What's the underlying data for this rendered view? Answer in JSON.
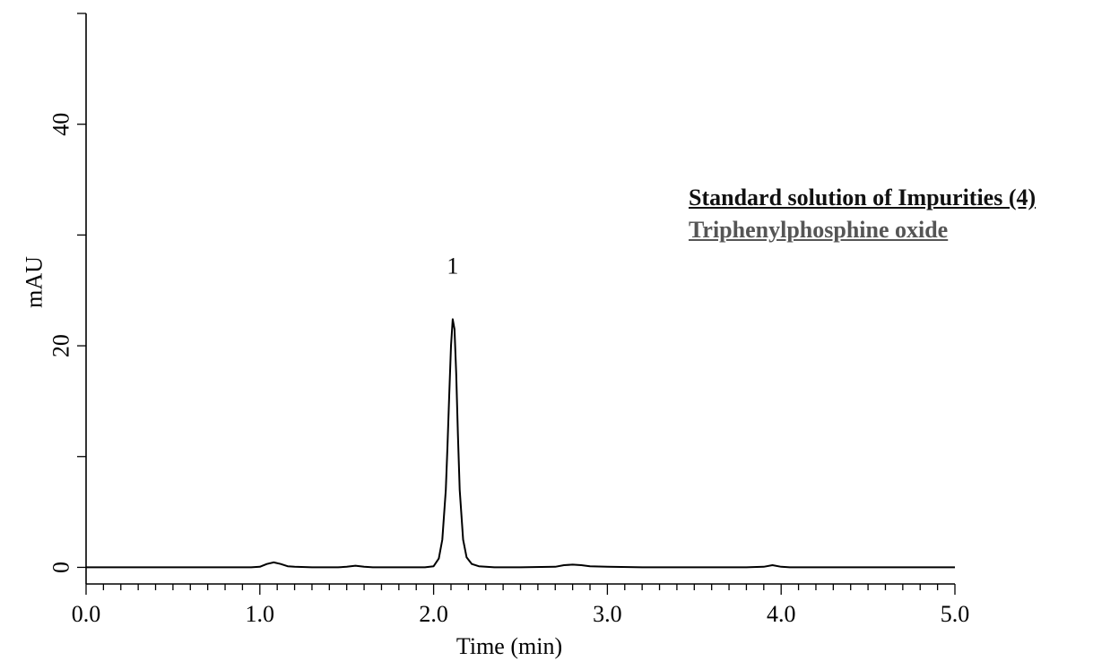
{
  "chart_data": {
    "type": "line",
    "xlabel": "Time (min)",
    "ylabel": "mAU",
    "xlim": [
      0.0,
      5.0
    ],
    "ylim": [
      -1.5,
      50
    ],
    "x_ticks": [
      "0.0",
      "1.0",
      "2.0",
      "3.0",
      "4.0",
      "5.0"
    ],
    "y_ticks": [
      "0",
      "20",
      "40"
    ],
    "x_minor_step": 0.1,
    "y_minor_step": 10,
    "legend": {
      "title": "Standard solution of Impurities (4)",
      "subtitle": "Triphenylphosphine oxide",
      "title_color": "#111111",
      "subtitle_color": "#555555",
      "placement": "right"
    },
    "series": [
      {
        "color": "#000000",
        "x": [
          0.0,
          0.2,
          0.4,
          0.6,
          0.8,
          0.95,
          1.0,
          1.04,
          1.08,
          1.12,
          1.16,
          1.2,
          1.3,
          1.45,
          1.5,
          1.55,
          1.6,
          1.65,
          1.8,
          1.95,
          2.0,
          2.03,
          2.05,
          2.07,
          2.08,
          2.09,
          2.1,
          2.11,
          2.12,
          2.13,
          2.14,
          2.15,
          2.17,
          2.19,
          2.22,
          2.26,
          2.35,
          2.5,
          2.7,
          2.75,
          2.8,
          2.85,
          2.9,
          3.0,
          3.2,
          3.5,
          3.8,
          3.9,
          3.95,
          4.0,
          4.05,
          4.2,
          4.5,
          4.8,
          5.0
        ],
        "y": [
          0.0,
          0.0,
          0.0,
          0.0,
          0.0,
          0.0,
          0.05,
          0.3,
          0.45,
          0.3,
          0.1,
          0.05,
          0.0,
          0.0,
          0.05,
          0.15,
          0.05,
          0.0,
          0.0,
          0.0,
          0.1,
          0.8,
          2.5,
          7.0,
          11.0,
          15.5,
          20.0,
          22.4,
          21.5,
          17.5,
          12.0,
          7.0,
          2.5,
          0.9,
          0.3,
          0.1,
          0.0,
          0.0,
          0.05,
          0.2,
          0.25,
          0.2,
          0.1,
          0.05,
          0.0,
          0.0,
          0.0,
          0.05,
          0.2,
          0.05,
          0.0,
          0.0,
          0.0,
          0.0,
          0.0
        ]
      }
    ],
    "annotations": [
      {
        "text": "1",
        "x": 2.11,
        "y": 26.5
      }
    ]
  }
}
